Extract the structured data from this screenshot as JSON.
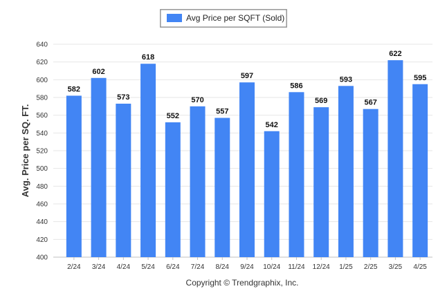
{
  "chart_data": {
    "type": "bar",
    "title": "",
    "xlabel": "",
    "ylabel": "Avg. Price per SQ. FT.",
    "categories": [
      "2/24",
      "3/24",
      "4/24",
      "5/24",
      "6/24",
      "7/24",
      "8/24",
      "9/24",
      "10/24",
      "11/24",
      "12/24",
      "1/25",
      "2/25",
      "3/25",
      "4/25"
    ],
    "series": [
      {
        "name": "Avg Price per SQFT (Sold)",
        "color": "#4285f4",
        "values": [
          582,
          602,
          573,
          618,
          552,
          570,
          557,
          597,
          542,
          586,
          569,
          593,
          567,
          622,
          595
        ]
      }
    ],
    "ylim": [
      400,
      640
    ],
    "yticks": [
      400,
      420,
      440,
      460,
      480,
      500,
      520,
      540,
      560,
      580,
      600,
      620,
      640
    ],
    "grid": true,
    "legend_position": "top-center",
    "data_labels": true
  },
  "credit": "Copyright © Trendgraphix, Inc."
}
